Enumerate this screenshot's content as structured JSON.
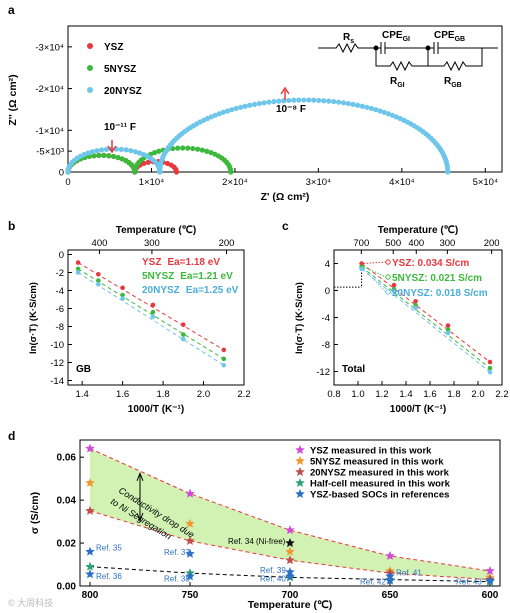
{
  "colors": {
    "red": "#e8383d",
    "green": "#3cb93c",
    "blue": "#6ec6ea",
    "magenta": "#d24bd8",
    "orange": "#f2992e",
    "brick": "#c0504d",
    "teal": "#2fa37a",
    "navy": "#2e6fc7",
    "fill": "#c9f0a6"
  },
  "watermark": "© 大周科技",
  "chart_data": [
    {
      "panel": "a",
      "type": "scatter",
      "xlabel": "Z' (Ω cm²)",
      "ylabel": "Z'' (Ω cm²)",
      "xticks": [
        "0",
        "1×10⁴",
        "2×10⁴",
        "3×10⁴",
        "4×10⁴",
        "5×10⁴"
      ],
      "yticks": [
        "-3×10⁴",
        "-2×10⁴",
        "-1×10⁴",
        "-5×10³",
        "0"
      ],
      "xlim": [
        0,
        52000
      ],
      "ylim": [
        0,
        -35000
      ],
      "series": [
        {
          "name": "YSZ",
          "arcs": [
            [
              0,
              8000
            ],
            [
              8000,
              13000
            ]
          ]
        },
        {
          "name": "5NYSZ",
          "arcs": [
            [
              0,
              8000
            ],
            [
              8000,
              19500
            ]
          ]
        },
        {
          "name": "20NYSZ",
          "arcs": [
            [
              0,
              11000
            ],
            [
              11000,
              45500
            ]
          ]
        }
      ],
      "annotations": [
        "10⁻¹¹ F",
        "10⁻⁸ F"
      ],
      "circuit": {
        "rs": "R",
        "rs_sub": "s",
        "cpe_gi": "CPE",
        "cpe_gi_sub": "GI",
        "r_gi": "R",
        "r_gi_sub": "GI",
        "cpe_gb": "CPE",
        "cpe_gb_sub": "GB",
        "r_gb": "R",
        "r_gb_sub": "GB"
      }
    },
    {
      "panel": "b",
      "type": "scatter",
      "xlabel": "1000/T (K⁻¹)",
      "ylabel": "ln(σ·T) (K·S/cm)",
      "top_label": "Temperature (℃)",
      "xticks": [
        "1.4",
        "1.6",
        "1.8",
        "2.0",
        "2.2"
      ],
      "yticks": [
        "0",
        "-2",
        "-4",
        "-6",
        "-8",
        "-10",
        "-12",
        "-14"
      ],
      "top_ticks": [
        "400",
        "300",
        "200"
      ],
      "xlim": [
        1.33,
        2.2
      ],
      "ylim": [
        -14.5,
        0.5
      ],
      "inner_label": "GB",
      "x": [
        1.38,
        1.48,
        1.6,
        1.75,
        1.9,
        2.1
      ],
      "series": [
        {
          "name": "YSZ",
          "label": "Ea=1.18 eV",
          "values": [
            -0.9,
            -2.2,
            -3.7,
            -5.6,
            -7.8,
            -10.6
          ]
        },
        {
          "name": "5NYSZ",
          "label": "Ea=1.21 eV",
          "values": [
            -1.6,
            -2.9,
            -4.5,
            -6.4,
            -8.9,
            -11.6
          ]
        },
        {
          "name": "20NYSZ",
          "label": "Ea=1.25 eV",
          "values": [
            -2.0,
            -3.3,
            -4.9,
            -6.9,
            -9.4,
            -12.3
          ]
        }
      ]
    },
    {
      "panel": "c",
      "type": "scatter",
      "xlabel": "1000/T (K⁻¹)",
      "ylabel": "ln(σ·T) (K·S/cm)",
      "top_label": "Temperature (℃)",
      "xticks": [
        "0.8",
        "1.0",
        "1.2",
        "1.4",
        "1.6",
        "1.8",
        "2.0",
        "2.2"
      ],
      "yticks": [
        "4",
        "0",
        "-4",
        "-8",
        "-12"
      ],
      "top_ticks": [
        "700",
        "500",
        "400",
        "300",
        "200"
      ],
      "xlim": [
        0.8,
        2.2
      ],
      "ylim": [
        -14,
        6
      ],
      "inner_label": "Total",
      "x": [
        1.03,
        1.3,
        1.48,
        1.75,
        2.1
      ],
      "series": [
        {
          "name": "YSZ",
          "label": "YSZ: 0.034 S/cm",
          "values": [
            4.0,
            0.8,
            -1.6,
            -5.2,
            -10.6
          ]
        },
        {
          "name": "5NYSZ",
          "label": "5NYSZ: 0.021 S/cm",
          "values": [
            3.5,
            0.2,
            -2.2,
            -5.8,
            -11.5
          ]
        },
        {
          "name": "20NYSZ",
          "label": "20NYSZ: 0.018 S/cm",
          "values": [
            3.2,
            -0.1,
            -2.6,
            -6.3,
            -12.1
          ]
        }
      ]
    },
    {
      "panel": "d",
      "type": "scatter",
      "xlabel": "Temperature (℃)",
      "ylabel": "σ (S/cm)",
      "xticks": [
        "800",
        "750",
        "700",
        "650",
        "600"
      ],
      "yticks": [
        "0.00",
        "0.02",
        "0.04",
        "0.06"
      ],
      "xlim": [
        805,
        595
      ],
      "ylim": [
        0,
        0.068
      ],
      "band_annotation": [
        "Conductivity drop due",
        "to Ni Segregation"
      ],
      "series": [
        {
          "name": "YSZ measured in this work",
          "x": [
            800,
            750,
            700,
            650,
            600
          ],
          "values": [
            0.064,
            0.043,
            0.026,
            0.014,
            0.007
          ]
        },
        {
          "name": "5NYSZ measured in this work",
          "x": [
            800,
            750,
            700,
            650,
            600
          ],
          "values": [
            0.048,
            0.029,
            0.016,
            0.007,
            0.004
          ]
        },
        {
          "name": "20NYSZ measured in this work",
          "x": [
            800,
            750,
            700,
            650,
            600
          ],
          "values": [
            0.035,
            0.021,
            0.012,
            0.006,
            0.003
          ]
        },
        {
          "name": "Half-cell measured in this work",
          "x": [
            800,
            750,
            700,
            650,
            600
          ],
          "values": [
            0.009,
            0.006,
            0.004,
            0.003,
            0.002
          ]
        },
        {
          "name": "YSZ-based SOCs in references",
          "x": [
            800,
            800,
            750,
            750,
            700,
            700,
            700,
            650,
            650,
            600
          ],
          "values": [
            0.016,
            0.0055,
            0.015,
            0.0045,
            0.02,
            0.0065,
            0.0045,
            0.0045,
            0.0025,
            0.0025
          ]
        }
      ],
      "refs": [
        "Ref. 35",
        "Ref. 36",
        "Ref. 37",
        "Ref. 38",
        "Ref. 34 (Ni-free)",
        "Ref. 39",
        "Ref. 40",
        "Ref. 41",
        "Ref. 42",
        "Ref. 43"
      ]
    }
  ],
  "panel_letters": [
    "a",
    "b",
    "c",
    "d"
  ]
}
